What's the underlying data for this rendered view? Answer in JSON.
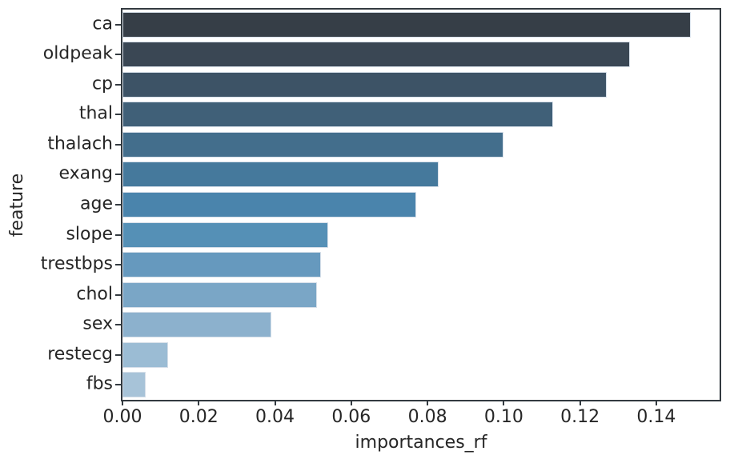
{
  "figure": {
    "background": "#ffffff",
    "spine_color": "#333a40",
    "text_color": "#262626"
  },
  "chart_data": {
    "type": "bar",
    "orientation": "horizontal",
    "title": "",
    "xlabel": "importances_rf",
    "ylabel": "feature",
    "categories": [
      "ca",
      "oldpeak",
      "cp",
      "thal",
      "thalach",
      "exang",
      "age",
      "slope",
      "trestbps",
      "chol",
      "sex",
      "restecg",
      "fbs"
    ],
    "values": [
      0.149,
      0.133,
      0.127,
      0.113,
      0.1,
      0.083,
      0.077,
      0.054,
      0.052,
      0.051,
      0.039,
      0.012,
      0.006
    ],
    "xlim": [
      0,
      0.1566
    ],
    "x_ticks": [
      0.0,
      0.02,
      0.04,
      0.06,
      0.08,
      0.1,
      0.12,
      0.14
    ],
    "x_tick_labels": [
      "0.00",
      "0.02",
      "0.04",
      "0.06",
      "0.08",
      "0.10",
      "0.12",
      "0.14"
    ],
    "bar_colors": [
      "#363e47",
      "#3a4754",
      "#3d5366",
      "#406078",
      "#436e8c",
      "#45799c",
      "#4a84ac",
      "#5590b6",
      "#6699be",
      "#7aa6c6",
      "#8cb1cd",
      "#9bbcd4",
      "#a7c3d8"
    ],
    "bar_edge_color": "#d6dfe9",
    "grid": false,
    "legend": null
  }
}
